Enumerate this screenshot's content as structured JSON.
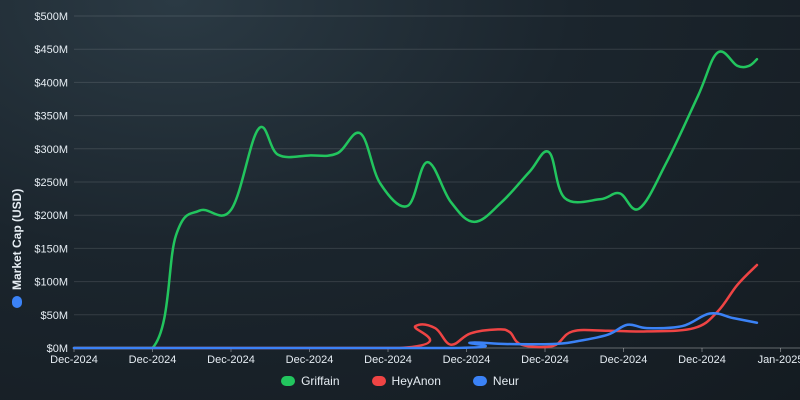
{
  "chart_data": {
    "type": "line",
    "title": "",
    "xlabel": "",
    "ylabel": "Market Cap (USD)",
    "ylim": [
      0,
      500000000
    ],
    "yticks": [
      {
        "value": 0,
        "label": "$0M"
      },
      {
        "value": 50000000,
        "label": "$50M"
      },
      {
        "value": 100000000,
        "label": "$100M"
      },
      {
        "value": 150000000,
        "label": "$150M"
      },
      {
        "value": 200000000,
        "label": "$200M"
      },
      {
        "value": 250000000,
        "label": "$250M"
      },
      {
        "value": 300000000,
        "label": "$300M"
      },
      {
        "value": 350000000,
        "label": "$350M"
      },
      {
        "value": 400000000,
        "label": "$400M"
      },
      {
        "value": 450000000,
        "label": "$450M"
      },
      {
        "value": 500000000,
        "label": "$500M"
      }
    ],
    "xlim": [
      0,
      9
    ],
    "xticks": [
      {
        "value": 0,
        "label": "Dec-2024"
      },
      {
        "value": 1,
        "label": "Dec-2024"
      },
      {
        "value": 2,
        "label": "Dec-2024"
      },
      {
        "value": 3,
        "label": "Dec-2024"
      },
      {
        "value": 4,
        "label": "Dec-2024"
      },
      {
        "value": 5,
        "label": "Dec-2024"
      },
      {
        "value": 6,
        "label": "Dec-2024"
      },
      {
        "value": 7,
        "label": "Dec-2024"
      },
      {
        "value": 8,
        "label": "Dec-2024"
      },
      {
        "value": 9,
        "label": "Jan-2025"
      }
    ],
    "grid": true,
    "legend_position": "bottom-center",
    "series": [
      {
        "name": "Griffain",
        "color": "#22c55e",
        "points": [
          [
            0,
            0
          ],
          [
            1,
            0
          ],
          [
            1.3,
            170000000
          ],
          [
            1.6,
            207000000
          ],
          [
            2,
            208000000
          ],
          [
            2.35,
            330000000
          ],
          [
            2.6,
            291000000
          ],
          [
            3,
            290000000
          ],
          [
            3.35,
            293000000
          ],
          [
            3.65,
            323000000
          ],
          [
            3.9,
            248000000
          ],
          [
            4.25,
            214000000
          ],
          [
            4.5,
            280000000
          ],
          [
            4.8,
            220000000
          ],
          [
            5.1,
            190000000
          ],
          [
            5.45,
            220000000
          ],
          [
            5.8,
            265000000
          ],
          [
            6.05,
            295000000
          ],
          [
            6.25,
            226000000
          ],
          [
            6.7,
            224000000
          ],
          [
            6.95,
            233000000
          ],
          [
            7.2,
            210000000
          ],
          [
            7.55,
            280000000
          ],
          [
            7.95,
            380000000
          ],
          [
            8.2,
            445000000
          ],
          [
            8.45,
            425000000
          ],
          [
            8.6,
            425000000
          ],
          [
            8.7,
            435000000
          ]
        ]
      },
      {
        "name": "HeyAnon",
        "color": "#ef4444",
        "points": [
          [
            0,
            0
          ],
          [
            4.15,
            0
          ],
          [
            4.35,
            33000000
          ],
          [
            4.6,
            30000000
          ],
          [
            4.8,
            5000000
          ],
          [
            5.05,
            22000000
          ],
          [
            5.4,
            28000000
          ],
          [
            5.55,
            24000000
          ],
          [
            5.7,
            5000000
          ],
          [
            6.1,
            3000000
          ],
          [
            6.35,
            25000000
          ],
          [
            6.8,
            26000000
          ],
          [
            7.3,
            25000000
          ],
          [
            7.9,
            30000000
          ],
          [
            8.2,
            55000000
          ],
          [
            8.45,
            95000000
          ],
          [
            8.7,
            125000000
          ]
        ]
      },
      {
        "name": "Neur",
        "color": "#3b82f6",
        "points": [
          [
            0,
            0
          ],
          [
            4.8,
            0
          ],
          [
            5.05,
            8000000
          ],
          [
            5.5,
            6000000
          ],
          [
            6.1,
            6000000
          ],
          [
            6.4,
            10000000
          ],
          [
            6.8,
            20000000
          ],
          [
            7.05,
            35000000
          ],
          [
            7.3,
            30000000
          ],
          [
            7.75,
            33000000
          ],
          [
            8.1,
            52000000
          ],
          [
            8.4,
            45000000
          ],
          [
            8.7,
            38000000
          ]
        ]
      }
    ]
  }
}
